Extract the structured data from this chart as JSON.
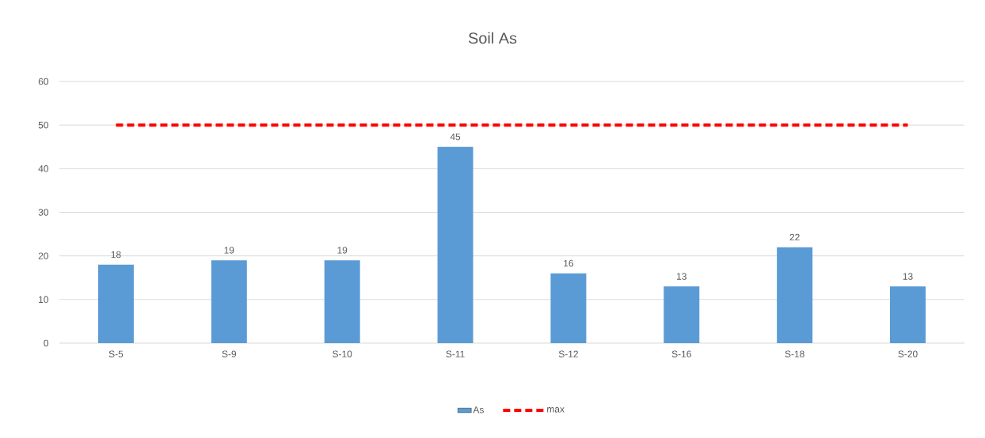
{
  "chart_data": {
    "type": "bar",
    "title": "Soil As",
    "categories": [
      "S-5",
      "S-9",
      "S-10",
      "S-11",
      "S-12",
      "S-16",
      "S-18",
      "S-20"
    ],
    "series": [
      {
        "name": "As",
        "color": "#5b9bd5",
        "values": [
          18,
          19,
          19,
          45,
          16,
          13,
          22,
          13
        ],
        "value_labels": [
          "18",
          "19",
          "19",
          "45",
          "16",
          "13",
          "22",
          "13"
        ]
      },
      {
        "name": "max",
        "type": "line",
        "color": "#ff0000",
        "line_style": "dashed",
        "values": [
          50,
          50,
          50,
          50,
          50,
          50,
          50,
          50
        ]
      }
    ],
    "ylim": [
      0,
      60
    ],
    "yticks": [
      0,
      10,
      20,
      30,
      40,
      50,
      60
    ],
    "grid": "y",
    "legend": "bottom"
  }
}
